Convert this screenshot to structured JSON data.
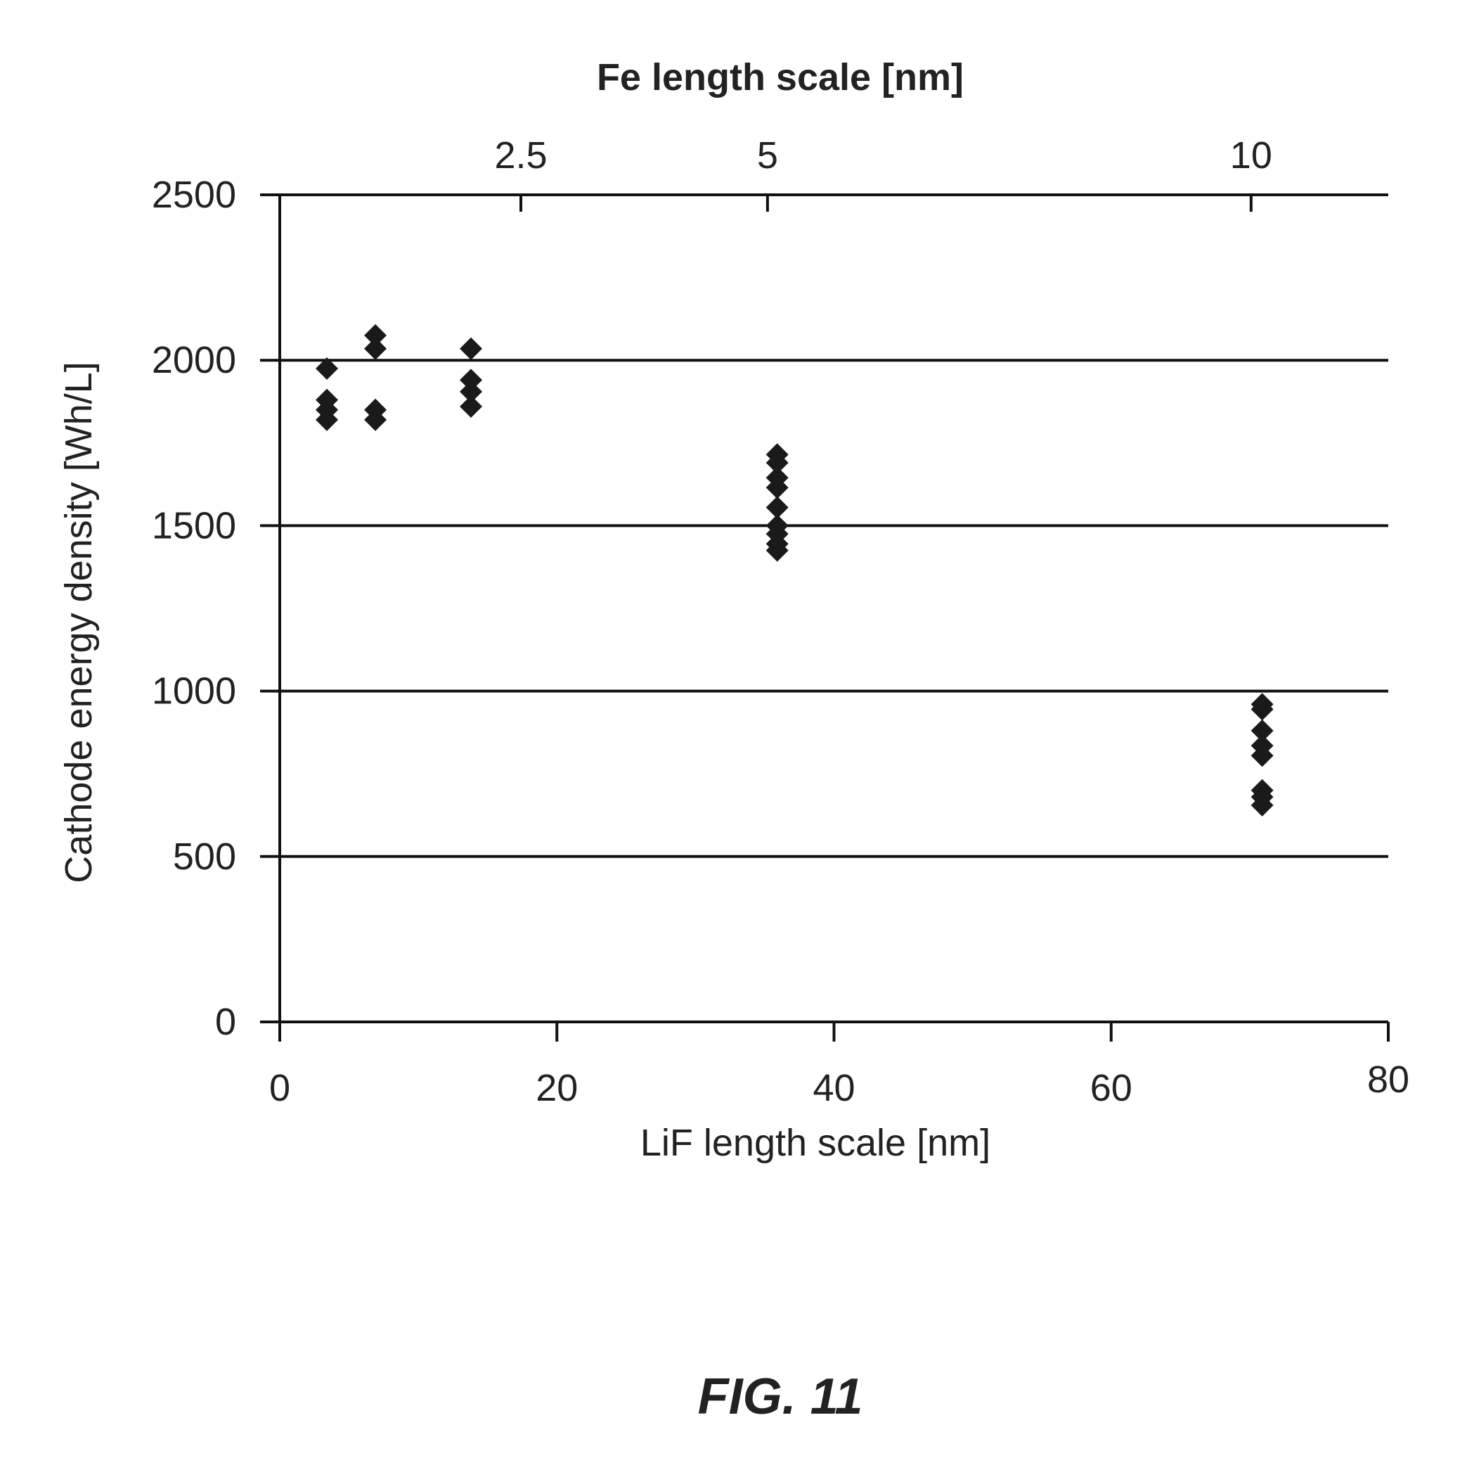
{
  "figure_label": "FIG. 11",
  "chart_data": {
    "type": "scatter",
    "title": "",
    "xlabel": "LiF length scale [nm]",
    "ylabel": "Cathode energy density [Wh/L]",
    "top_xlabel": "Fe length scale [nm]",
    "xlim": [
      0,
      80
    ],
    "ylim": [
      0,
      2500
    ],
    "x_ticks": [
      "0",
      "20",
      "40",
      "60",
      "80"
    ],
    "x_tick_values": [
      0,
      20,
      40,
      60,
      80
    ],
    "y_ticks": [
      "0",
      "500",
      "1000",
      "1500",
      "2000",
      "2500"
    ],
    "y_tick_values": [
      0,
      500,
      1000,
      1500,
      2000,
      2500
    ],
    "top_x_ticks": [
      {
        "label": "2.5",
        "lif_value": 17.4
      },
      {
        "label": "5",
        "lif_value": 35.2
      },
      {
        "label": "10",
        "lif_value": 70.1
      }
    ],
    "grid": "horizontal",
    "marker": "diamond",
    "series": [
      {
        "points": [
          {
            "x": 3.4,
            "y": 1975
          },
          {
            "x": 3.4,
            "y": 1880
          },
          {
            "x": 3.4,
            "y": 1850
          },
          {
            "x": 3.4,
            "y": 1820
          },
          {
            "x": 6.9,
            "y": 2075
          },
          {
            "x": 6.9,
            "y": 2035
          },
          {
            "x": 6.9,
            "y": 1850
          },
          {
            "x": 6.9,
            "y": 1820
          },
          {
            "x": 13.8,
            "y": 2035
          },
          {
            "x": 13.8,
            "y": 1940
          },
          {
            "x": 13.8,
            "y": 1905
          },
          {
            "x": 13.8,
            "y": 1860
          },
          {
            "x": 35.9,
            "y": 1715
          },
          {
            "x": 35.9,
            "y": 1690
          },
          {
            "x": 35.9,
            "y": 1645
          },
          {
            "x": 35.9,
            "y": 1615
          },
          {
            "x": 35.9,
            "y": 1555
          },
          {
            "x": 35.9,
            "y": 1500
          },
          {
            "x": 35.9,
            "y": 1475
          },
          {
            "x": 35.9,
            "y": 1445
          },
          {
            "x": 35.9,
            "y": 1425
          },
          {
            "x": 70.9,
            "y": 960
          },
          {
            "x": 70.9,
            "y": 945
          },
          {
            "x": 70.9,
            "y": 880
          },
          {
            "x": 70.9,
            "y": 835
          },
          {
            "x": 70.9,
            "y": 805
          },
          {
            "x": 70.9,
            "y": 700
          },
          {
            "x": 70.9,
            "y": 680
          },
          {
            "x": 70.9,
            "y": 655
          }
        ]
      }
    ]
  }
}
